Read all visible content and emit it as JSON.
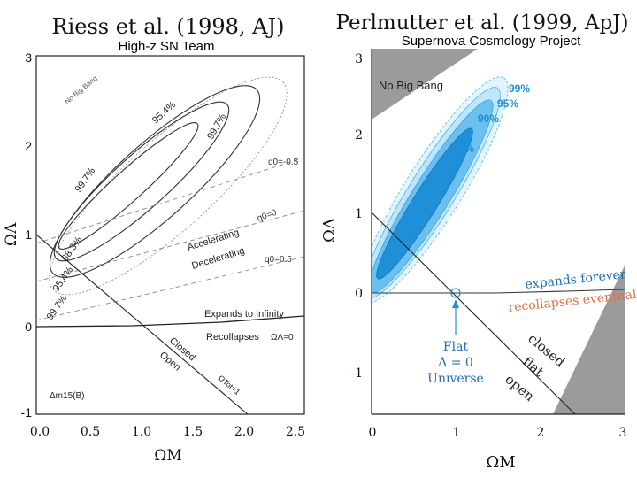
{
  "chart_data": [
    {
      "type": "contour",
      "title": "Riess et al. (1998, AJ)",
      "subtitle": "High-z SN Team",
      "xlabel": "ΩM",
      "ylabel": "ΩΛ",
      "xlim": [
        0,
        2.5
      ],
      "ylim": [
        -1,
        3
      ],
      "xticks": [
        "0.0",
        "0.5",
        "1.0",
        "1.5",
        "2.0",
        "2.5"
      ],
      "yticks": [
        "-1",
        "0",
        "1",
        "2",
        "3"
      ],
      "confidence_levels": [
        {
          "label": "68.3%",
          "center": [
            0.85,
            1.45
          ],
          "semi_major": 1.15,
          "semi_minor": 0.14
        },
        {
          "label": "95.4%",
          "center": [
            0.95,
            1.55
          ],
          "semi_major": 1.45,
          "semi_minor": 0.28
        },
        {
          "label": "99.7%",
          "center": [
            1.05,
            1.65
          ],
          "semi_major": 1.75,
          "semi_minor": 0.42
        }
      ],
      "reference_lines": [
        {
          "name": "flat",
          "points": [
            [
              0,
              1
            ],
            [
              2,
              -1
            ]
          ],
          "label": "ΩTot=1"
        },
        {
          "name": "expansion-boundary",
          "points": [
            [
              0,
              0
            ],
            [
              2.5,
              0.1
            ]
          ],
          "label": "ΩΛ=0"
        },
        {
          "name": "q0=-0.5",
          "points": [
            [
              0,
              0.25
            ],
            [
              2.5,
              1.8
            ]
          ],
          "label": "q0=-0.5"
        },
        {
          "name": "q0=0",
          "points": [
            [
              0,
              0
            ],
            [
              2.5,
              1.25
            ]
          ],
          "label": "q0=0"
        },
        {
          "name": "q0=0.5",
          "points": [
            [
              0,
              -0.5
            ],
            [
              2.5,
              0.75
            ]
          ],
          "label": "q0=0.5"
        }
      ],
      "annotations": [
        "No Big Bang",
        "Accelerating",
        "Decelerating",
        "Expands to Infinity",
        "Recollapses",
        "Closed",
        "Open",
        "Δm15(B)"
      ]
    },
    {
      "type": "contour",
      "title": "Perlmutter et al. (1999, ApJ)",
      "subtitle": "Supernova Cosmology Project",
      "xlabel": "ΩM",
      "ylabel": "ΩΛ",
      "xlim": [
        0,
        3
      ],
      "ylim": [
        -1.5,
        3.2
      ],
      "xticks": [
        "0",
        "1",
        "2",
        "3"
      ],
      "yticks": [
        "-1",
        "0",
        "1",
        "2",
        "3"
      ],
      "confidence_levels": [
        {
          "label": "68%",
          "center": [
            0.73,
            1.32
          ],
          "semi_major": 0.85,
          "semi_minor": 0.12
        },
        {
          "label": "90%",
          "center": [
            0.73,
            1.32
          ],
          "semi_major": 1.05,
          "semi_minor": 0.19
        },
        {
          "label": "95%",
          "center": [
            0.73,
            1.32
          ],
          "semi_major": 1.2,
          "semi_minor": 0.24
        },
        {
          "label": "99%",
          "center": [
            0.73,
            1.32
          ],
          "semi_major": 1.35,
          "semi_minor": 0.3
        }
      ],
      "reference_lines": [
        {
          "name": "flat",
          "points": [
            [
              0,
              1
            ],
            [
              2.5,
              -1.5
            ]
          ],
          "label": "flat"
        },
        {
          "name": "expansion-boundary",
          "points": [
            [
              0,
              0
            ],
            [
              3,
              0
            ]
          ],
          "label": ""
        }
      ],
      "marked_point": {
        "x": 1,
        "y": 0,
        "label": "Flat Λ = 0 Universe"
      },
      "annotations": [
        "No Big Bang",
        "expands forever",
        "recollapses eventually",
        "closed",
        "flat",
        "open"
      ]
    }
  ],
  "panels": {
    "left": {
      "title": "Riess et al. (1998, AJ)",
      "subtitle": "High-z SN Team",
      "no_big_bang": "No Big Bang",
      "level_labels": {
        "l95a": "95.4%",
        "l997a": "99.7%",
        "l997b": "99.7%",
        "l683": "68.3%",
        "l954b": "95.4%",
        "l997c": "99.7%"
      },
      "q0_labels": {
        "qm05": "q0=-0.5",
        "q00": "q0=0",
        "q05": "q0=0.5"
      },
      "accelerating": "Accelerating",
      "decelerating": "Decelerating",
      "expands": "Expands to Infinity",
      "recollapses": "Recollapses",
      "omega_lambda_zero": "ΩΛ=0",
      "closed": "Closed",
      "open": "Open",
      "omega_tot": "ΩTot=1",
      "dm15": "Δm15(B)",
      "x_axis_label": "ΩM",
      "y_axis_label": "ΩΛ"
    },
    "right": {
      "title": "Perlmutter et al. (1999, ApJ)",
      "subtitle": "Supernova Cosmology Project",
      "no_big_bang": "No Big Bang",
      "level_labels": {
        "p99": "99%",
        "p95": "95%",
        "p90": "90%",
        "p68": "68%"
      },
      "expands": "expands forever",
      "recollapses": "recollapses eventually",
      "flat_point": [
        "Flat",
        "Λ = 0",
        "Universe"
      ],
      "closed": "closed",
      "flat": "flat",
      "open": "open",
      "x_axis_label": "ΩM",
      "y_axis_label": "ΩΛ"
    }
  },
  "colors": {
    "contour_dark": "#1f8fd8",
    "contour_mid": "#6cc0f0",
    "contour_light": "#bfe6fb",
    "contour_faint": "#e2f4fd",
    "no_big_bang_gray": "#9b9b9b",
    "expands_text": "#1f6fb3",
    "recollapses_text": "#e07040"
  }
}
